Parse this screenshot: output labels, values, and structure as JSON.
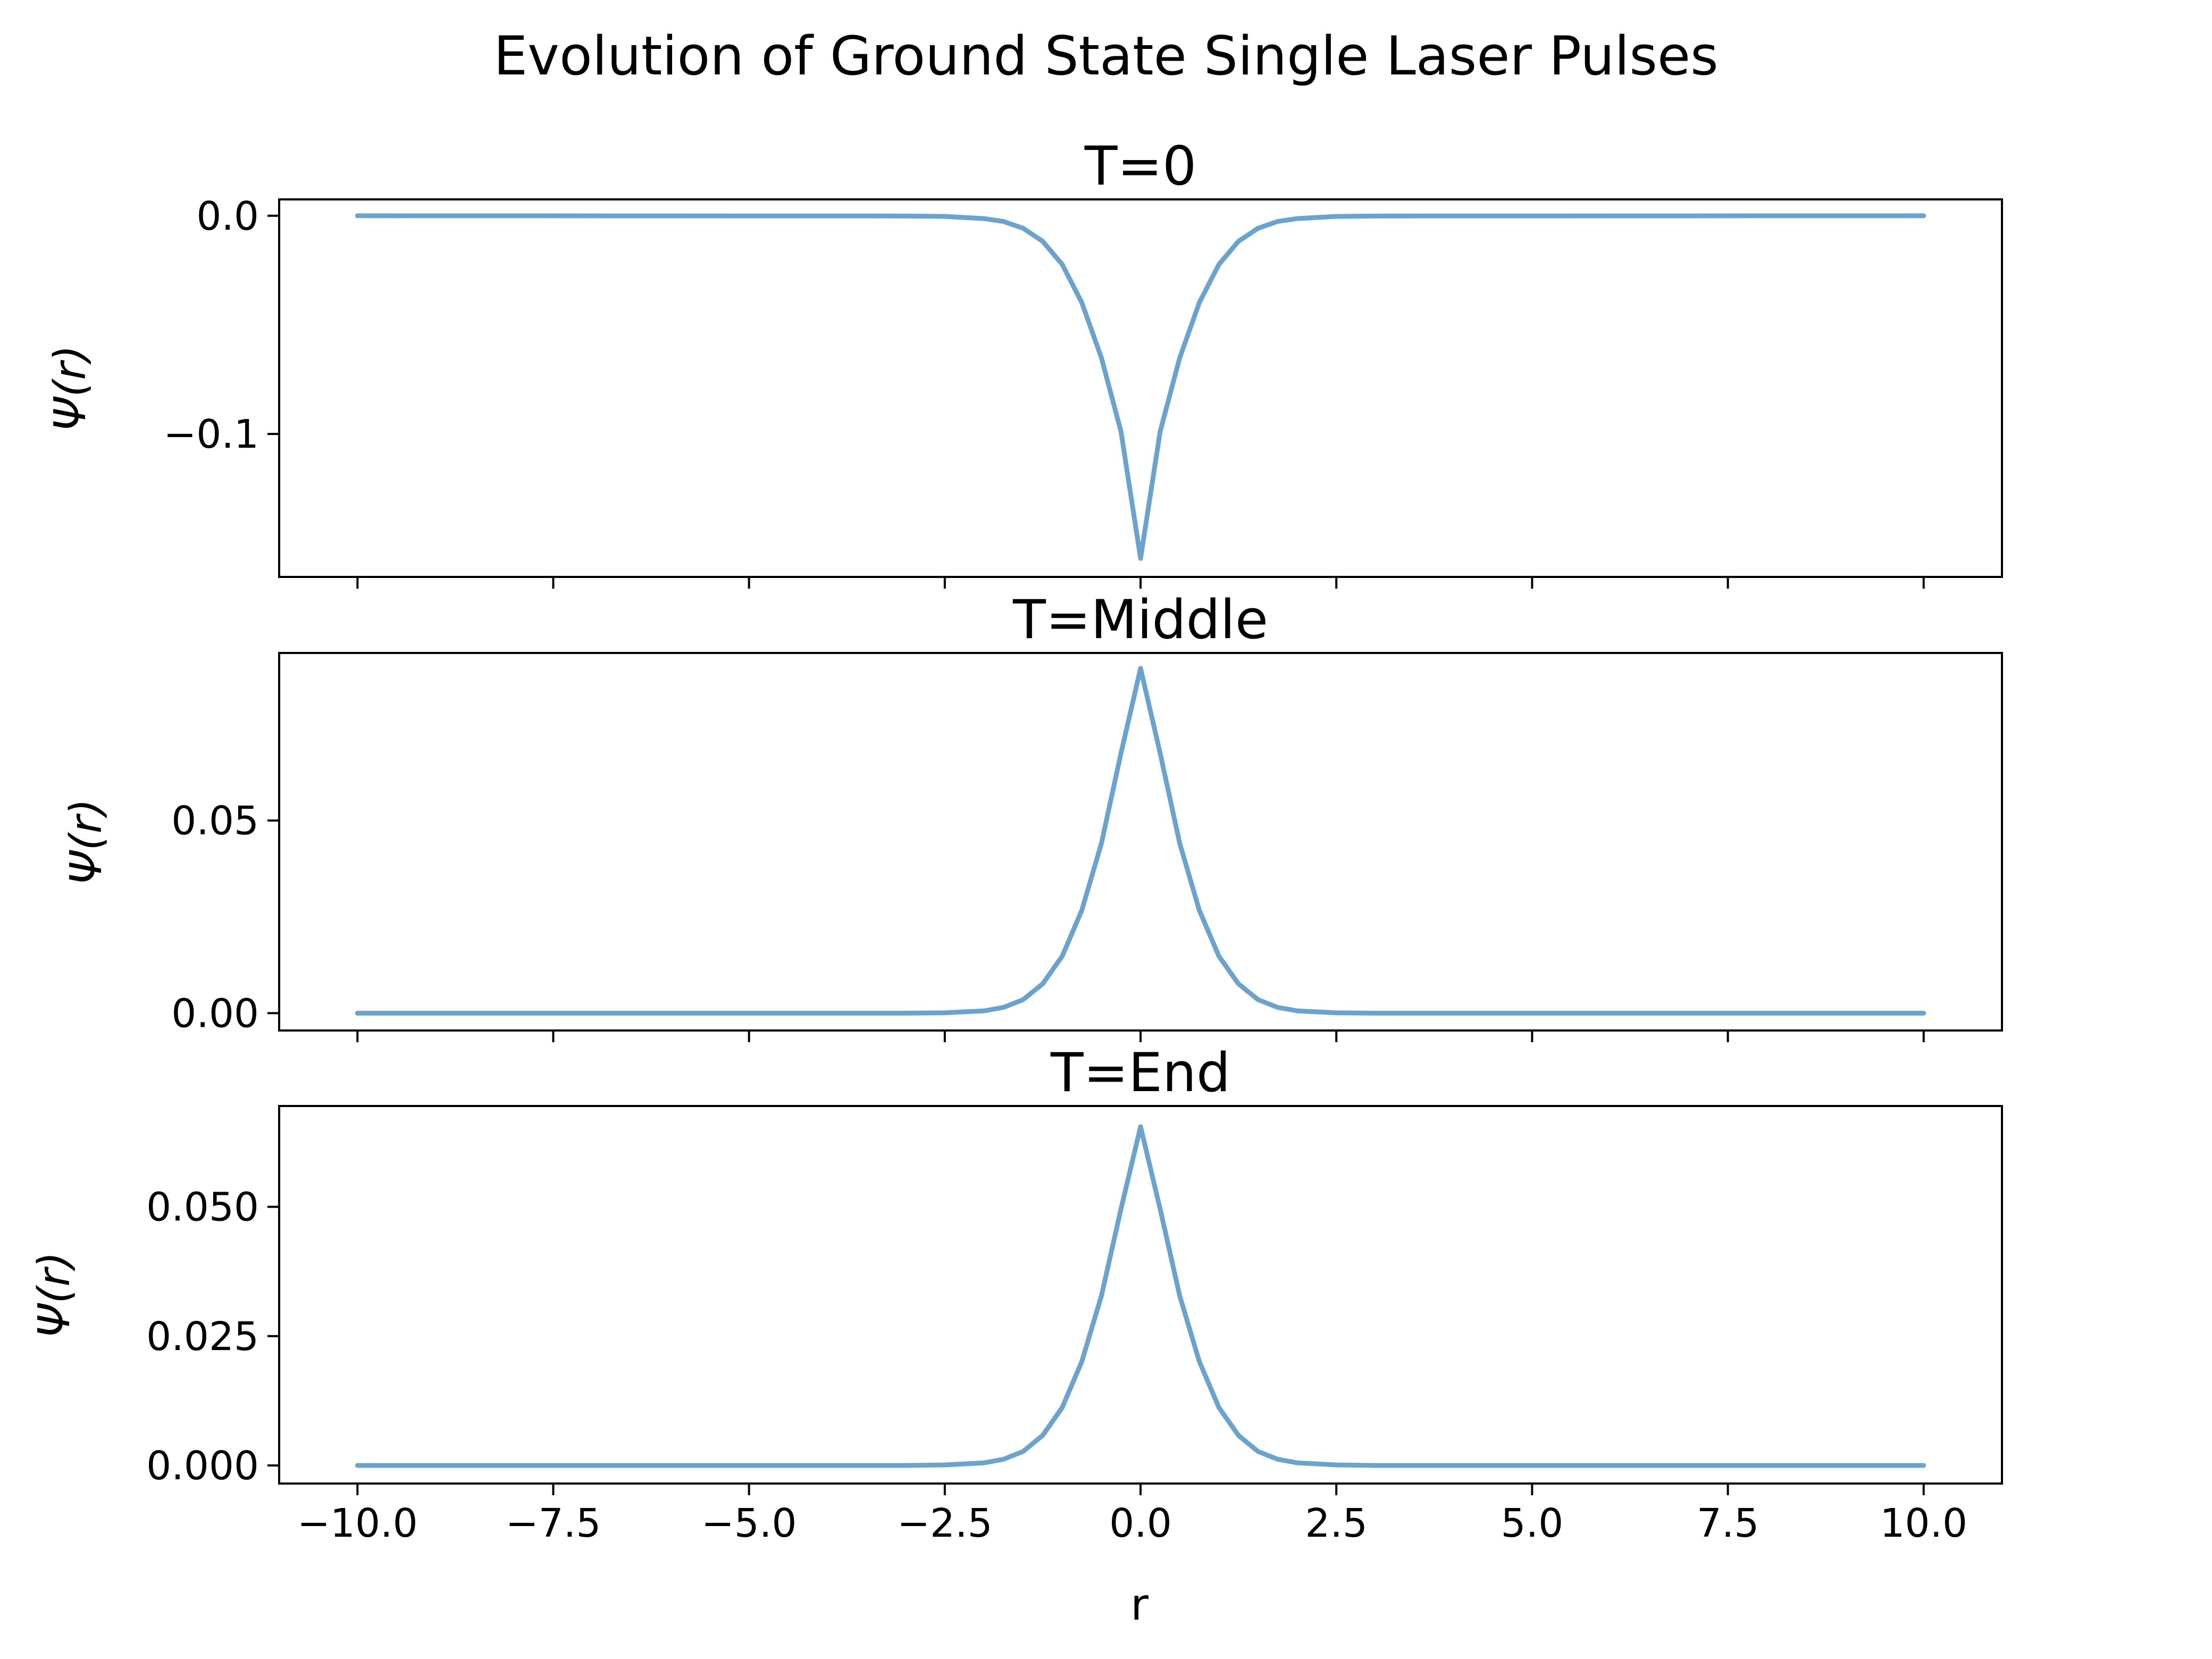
{
  "figure": {
    "title": "Evolution of Ground State Single Laser Pulses",
    "xlabel": "r",
    "line_color": "#6ca3cc"
  },
  "chart_data": [
    {
      "type": "line",
      "title": "T=0",
      "ylabel": "Ψ(r)",
      "xlim": [
        -11,
        11
      ],
      "ylim": [
        -0.1655,
        0.0075
      ],
      "xticks": [
        -10,
        -7.5,
        -5,
        -2.5,
        0,
        2.5,
        5,
        7.5,
        10
      ],
      "xtick_labels": [],
      "yticks": [
        0,
        -0.1
      ],
      "ytick_labels": [
        "0.0",
        "−0.1"
      ],
      "series": [
        {
          "x": [
            -10,
            -3,
            -2.5,
            -2,
            -1.75,
            -1.5,
            -1.25,
            -1,
            -0.75,
            -0.5,
            -0.25,
            0,
            0.25,
            0.5,
            0.75,
            1,
            1.25,
            1.5,
            1.75,
            2,
            2.5,
            3,
            10
          ],
          "y": [
            0,
            -0.0001,
            -0.0003,
            -0.0013,
            -0.0026,
            -0.0057,
            -0.0117,
            -0.0223,
            -0.0398,
            -0.0651,
            -0.0989,
            -0.157,
            -0.0989,
            -0.0651,
            -0.0398,
            -0.0223,
            -0.0117,
            -0.0057,
            -0.0026,
            -0.0013,
            -0.0003,
            -0.0001,
            0
          ]
        }
      ]
    },
    {
      "type": "line",
      "title": "T=Middle",
      "ylabel": "Ψ(r)",
      "xlim": [
        -11,
        11
      ],
      "ylim": [
        -0.0045,
        0.0935
      ],
      "xticks": [
        -10,
        -7.5,
        -5,
        -2.5,
        0,
        2.5,
        5,
        7.5,
        10
      ],
      "xtick_labels": [],
      "yticks": [
        0,
        0.05
      ],
      "ytick_labels": [
        "0.00",
        "0.05"
      ],
      "series": [
        {
          "x": [
            -10,
            -3,
            -2.5,
            -2,
            -1.75,
            -1.5,
            -1.25,
            -1,
            -0.75,
            -0.5,
            -0.25,
            0,
            0.25,
            0.5,
            0.75,
            1,
            1.25,
            1.5,
            1.75,
            2,
            2.5,
            3,
            10
          ],
          "y": [
            0,
            0,
            0.0001,
            0.0006,
            0.0015,
            0.0035,
            0.0076,
            0.0148,
            0.0267,
            0.0441,
            0.0675,
            0.0895,
            0.0675,
            0.0441,
            0.0267,
            0.0148,
            0.0076,
            0.0035,
            0.0015,
            0.0006,
            0.0001,
            0,
            0
          ]
        }
      ]
    },
    {
      "type": "line",
      "title": "T=End",
      "ylabel": "Ψ(r)",
      "xlim": [
        -11,
        11
      ],
      "ylim": [
        -0.0035,
        0.0695
      ],
      "xticks": [
        -10,
        -7.5,
        -5,
        -2.5,
        0,
        2.5,
        5,
        7.5,
        10
      ],
      "xtick_labels": [
        "−10.0",
        "−7.5",
        "−5.0",
        "−2.5",
        "0.0",
        "2.5",
        "5.0",
        "7.5",
        "10.0"
      ],
      "yticks": [
        0,
        0.025,
        0.05
      ],
      "ytick_labels": [
        "0.000",
        "0.025",
        "0.050"
      ],
      "series": [
        {
          "x": [
            -10,
            -3,
            -2.5,
            -2,
            -1.75,
            -1.5,
            -1.25,
            -1,
            -0.75,
            -0.5,
            -0.25,
            0,
            0.25,
            0.5,
            0.75,
            1,
            1.25,
            1.5,
            1.75,
            2,
            2.5,
            3,
            10
          ],
          "y": [
            0,
            0,
            0.0001,
            0.0005,
            0.0012,
            0.0027,
            0.0058,
            0.0112,
            0.0201,
            0.0328,
            0.0496,
            0.0655,
            0.0496,
            0.0328,
            0.0201,
            0.0112,
            0.0058,
            0.0027,
            0.0012,
            0.0005,
            0.0001,
            0,
            0
          ]
        }
      ]
    }
  ]
}
